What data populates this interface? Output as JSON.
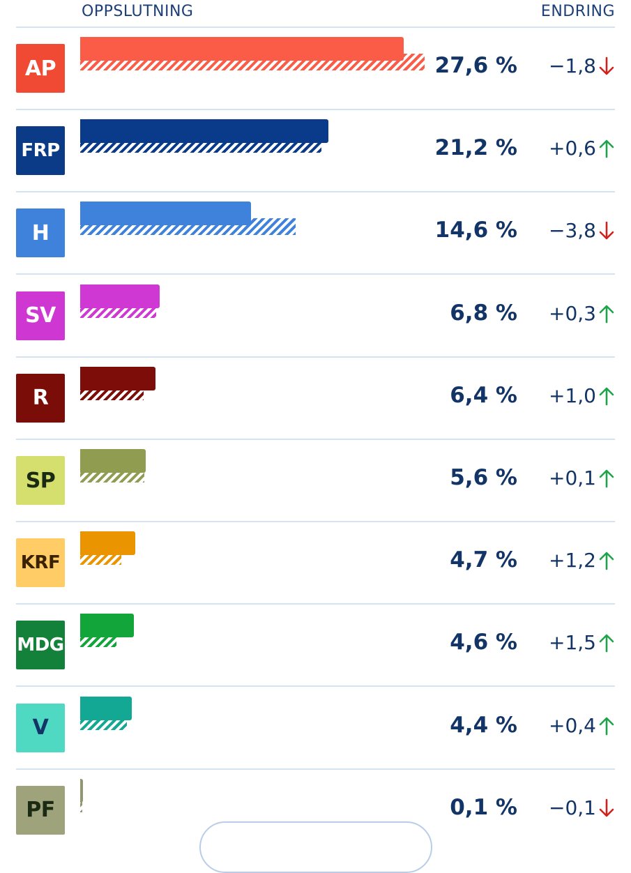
{
  "header": {
    "left": "OPPSLUTNING",
    "right": "ENDRING"
  },
  "colors": {
    "up": "#1fa34a",
    "down": "#d2201a",
    "text": "#133467"
  },
  "chart_data": {
    "type": "bar",
    "title": "",
    "unit": "%",
    "xlim": [
      0,
      30
    ],
    "legend": "none",
    "parties": [
      {
        "code": "AP",
        "pct": 27.6,
        "pct_label": "27,6 %",
        "prev": 29.4,
        "change": -1.8,
        "change_label": "−1,8",
        "dir": "down",
        "color": "#fb5c48",
        "badge": "#f04a34",
        "text": "#ffffff"
      },
      {
        "code": "FRP",
        "pct": 21.2,
        "pct_label": "21,2 %",
        "prev": 20.6,
        "change": 0.6,
        "change_label": "+0,6",
        "dir": "up",
        "color": "#0a3a8a",
        "badge": "#0b3a87",
        "text": "#ffffff"
      },
      {
        "code": "H",
        "pct": 14.6,
        "pct_label": "14,6 %",
        "prev": 18.4,
        "change": -3.8,
        "change_label": "−3,8",
        "dir": "down",
        "color": "#3f82dc",
        "badge": "#3f82dc",
        "text": "#ffffff"
      },
      {
        "code": "SV",
        "pct": 6.8,
        "pct_label": "6,8 %",
        "prev": 6.5,
        "change": 0.3,
        "change_label": "+0,3",
        "dir": "up",
        "color": "#d038d4",
        "badge": "#cf37d3",
        "text": "#ffffff"
      },
      {
        "code": "R",
        "pct": 6.4,
        "pct_label": "6,4 %",
        "prev": 5.4,
        "change": 1.0,
        "change_label": "+1,0",
        "dir": "up",
        "color": "#7c0d08",
        "badge": "#7a0d08",
        "text": "#ffffff"
      },
      {
        "code": "SP",
        "pct": 5.6,
        "pct_label": "5,6 %",
        "prev": 5.5,
        "change": 0.1,
        "change_label": "+0,1",
        "dir": "up",
        "color": "#909c50",
        "badge": "#d4df6e",
        "text": "#1b2a12"
      },
      {
        "code": "KRF",
        "pct": 4.7,
        "pct_label": "4,7 %",
        "prev": 3.5,
        "change": 1.2,
        "change_label": "+1,2",
        "dir": "up",
        "color": "#ea9400",
        "badge": "#ffcc66",
        "text": "#3b2200"
      },
      {
        "code": "MDG",
        "pct": 4.6,
        "pct_label": "4,6 %",
        "prev": 3.1,
        "change": 1.5,
        "change_label": "+1,5",
        "dir": "up",
        "color": "#12a63a",
        "badge": "#14813a",
        "text": "#ffffff"
      },
      {
        "code": "V",
        "pct": 4.4,
        "pct_label": "4,4 %",
        "prev": 4.0,
        "change": 0.4,
        "change_label": "+0,4",
        "dir": "up",
        "color": "#13a894",
        "badge": "#4fd8c2",
        "text": "#133467"
      },
      {
        "code": "PF",
        "pct": 0.1,
        "pct_label": "0,1 %",
        "prev": 0.2,
        "change": -0.1,
        "change_label": "−0,1",
        "dir": "down",
        "color": "#8f9870",
        "badge": "#9ea37b",
        "text": "#1b2a12"
      }
    ]
  }
}
